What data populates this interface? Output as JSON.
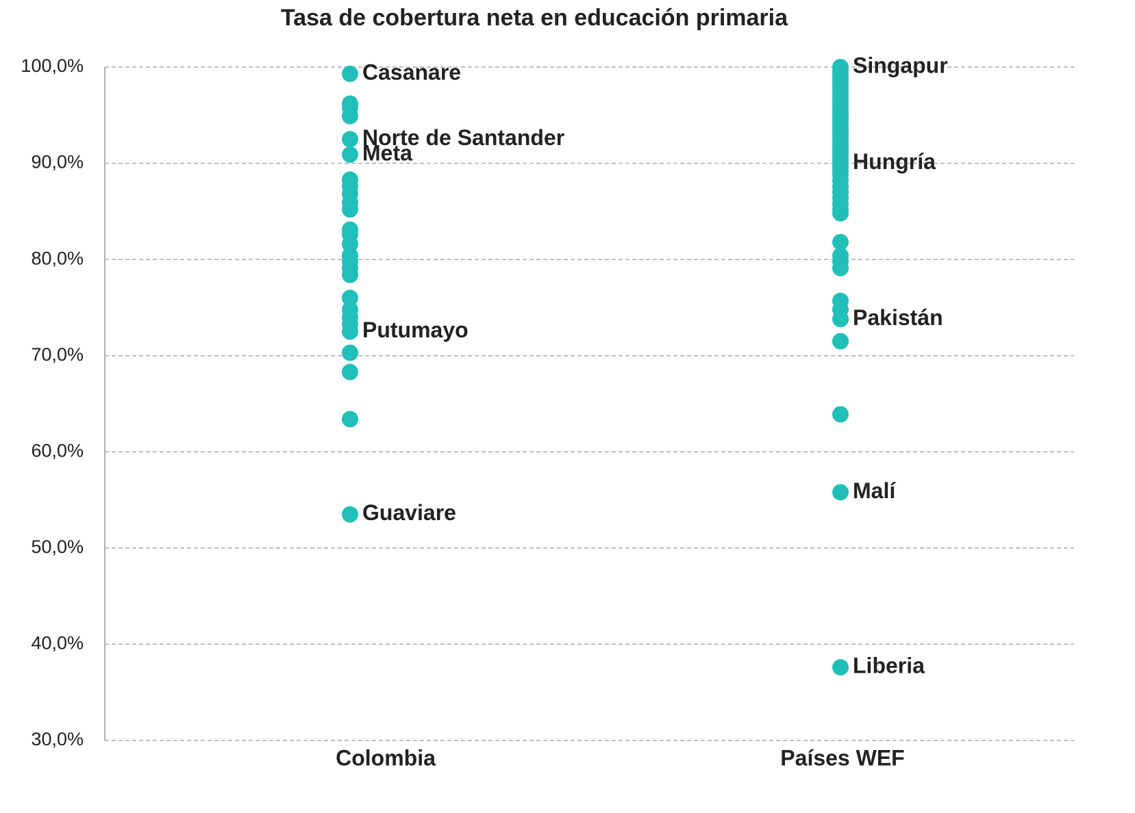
{
  "chart_data": {
    "type": "strip",
    "title": "Tasa de cobertura neta en educación primaria",
    "categories": [
      "Colombia",
      "Países WEF"
    ],
    "color": "#20bfb8",
    "values": [
      [
        99.3,
        96.2,
        95.8,
        94.9,
        92.5,
        90.9,
        88.3,
        87.6,
        86.8,
        85.9,
        85.2,
        83.1,
        82.6,
        81.6,
        80.4,
        79.8,
        79.1,
        78.4,
        76.0,
        74.8,
        74.0,
        73.3,
        72.5,
        70.3,
        68.3,
        63.4,
        53.5
      ],
      [
        100,
        99.6,
        99.2,
        98.8,
        98.4,
        98.0,
        97.6,
        97.2,
        96.8,
        96.4,
        96.0,
        95.6,
        95.2,
        94.8,
        94.4,
        94.0,
        93.6,
        93.2,
        92.8,
        92.4,
        92.0,
        91.6,
        91.2,
        90.8,
        90.4,
        90.0,
        89.6,
        89.2,
        88.8,
        88.2,
        87.6,
        87.0,
        86.4,
        85.8,
        85.2,
        84.8,
        81.8,
        80.4,
        79.8,
        79.1,
        75.7,
        74.8,
        73.8,
        71.5,
        63.9,
        55.8,
        37.6
      ]
    ],
    "value_labels": [
      [
        "Casanare",
        null,
        null,
        null,
        "Norte de Santander",
        "Meta",
        null,
        null,
        null,
        null,
        null,
        null,
        null,
        null,
        null,
        null,
        null,
        null,
        null,
        null,
        null,
        null,
        "Putumayo",
        null,
        null,
        null,
        "Guaviare"
      ],
      [
        "Singapur",
        null,
        null,
        null,
        null,
        null,
        null,
        null,
        null,
        null,
        null,
        null,
        null,
        null,
        null,
        null,
        null,
        null,
        null,
        null,
        null,
        null,
        null,
        null,
        null,
        "Hungría",
        null,
        null,
        null,
        null,
        null,
        null,
        null,
        null,
        null,
        null,
        null,
        null,
        null,
        null,
        null,
        null,
        "Pakistán",
        null,
        null,
        "Malí",
        "Liberia"
      ]
    ],
    "ylim": [
      30,
      100
    ],
    "yticks": [
      {
        "value": 30,
        "label": "30,0%"
      },
      {
        "value": 40,
        "label": "40,0%"
      },
      {
        "value": 50,
        "label": "50,0%"
      },
      {
        "value": 60,
        "label": "60,0%"
      },
      {
        "value": 70,
        "label": "70,0%"
      },
      {
        "value": 80,
        "label": "80,0%"
      },
      {
        "value": 90,
        "label": "90,0%"
      },
      {
        "value": 100,
        "label": "100,0%"
      }
    ],
    "grid": true
  }
}
